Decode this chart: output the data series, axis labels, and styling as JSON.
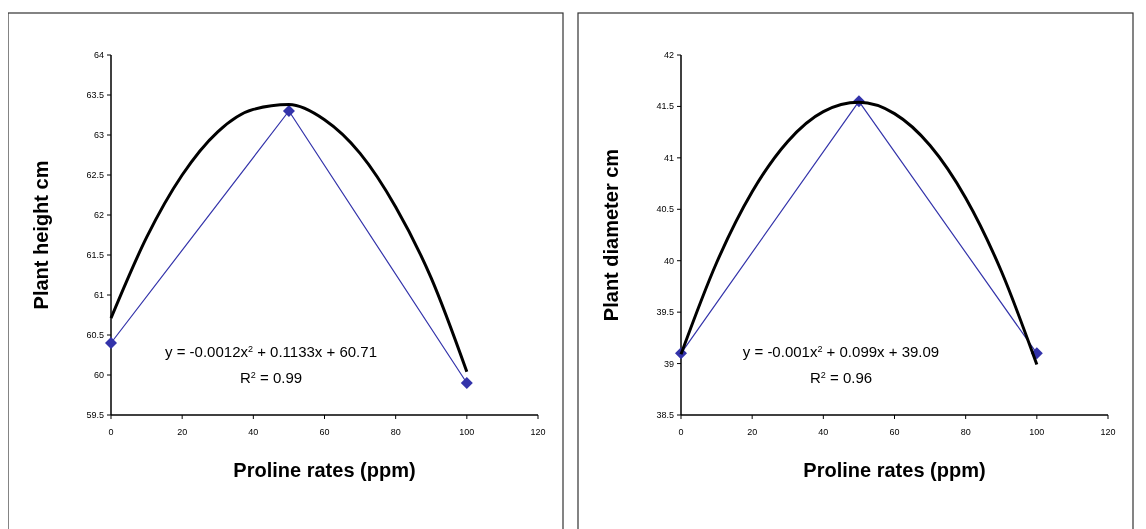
{
  "chart_data": [
    {
      "type": "line",
      "xlabel": "Proline rates (ppm)",
      "ylabel": "Plant height cm",
      "x": [
        0,
        50,
        100
      ],
      "xlim": [
        0,
        120
      ],
      "xticks": [
        0,
        20,
        40,
        60,
        80,
        100,
        120
      ],
      "ylim": [
        59.5,
        64
      ],
      "yticks": [
        59.5,
        60,
        60.5,
        61,
        61.5,
        62,
        62.5,
        63,
        63.5,
        64
      ],
      "grid": false,
      "series": [
        {
          "color": "#3333aa",
          "values": [
            60.4,
            63.3,
            59.9
          ],
          "marker": "diamond"
        },
        {
          "color": "#000000",
          "x": [
            0,
            10,
            20,
            30,
            40,
            50,
            60,
            70,
            80,
            90,
            100
          ],
          "values": [
            60.71,
            61.72,
            62.5,
            63.04,
            63.32,
            63.38,
            63.19,
            62.77,
            62.1,
            61.21,
            60.04
          ],
          "marker": "none"
        }
      ],
      "annotations": [
        "y = -0.0012x$^{2}$ + 0.1133x + 60.71",
        "R$^{2}$ = 0.99"
      ]
    },
    {
      "type": "line",
      "xlabel": "Proline rates (ppm)",
      "ylabel": "Plant diameter cm",
      "x": [
        0,
        50,
        100
      ],
      "xlim": [
        0,
        120
      ],
      "xticks": [
        0,
        20,
        40,
        60,
        80,
        100,
        120
      ],
      "ylim": [
        38.5,
        42
      ],
      "yticks": [
        38.5,
        39,
        39.5,
        40,
        40.5,
        41,
        41.5,
        42
      ],
      "grid": false,
      "series": [
        {
          "color": "#3333aa",
          "values": [
            39.1,
            41.55,
            39.1
          ],
          "marker": "diamond"
        },
        {
          "color": "#000000",
          "x": [
            0,
            10,
            20,
            30,
            40,
            50,
            60,
            70,
            80,
            90,
            100
          ],
          "values": [
            39.09,
            39.98,
            40.67,
            41.16,
            41.45,
            41.54,
            41.43,
            41.12,
            40.61,
            39.9,
            38.99
          ],
          "marker": "none"
        }
      ],
      "annotations": [
        "y = -0.001x$^{2}$ + 0.099x + 39.09",
        "R$^{2}$ = 0.96"
      ]
    }
  ]
}
